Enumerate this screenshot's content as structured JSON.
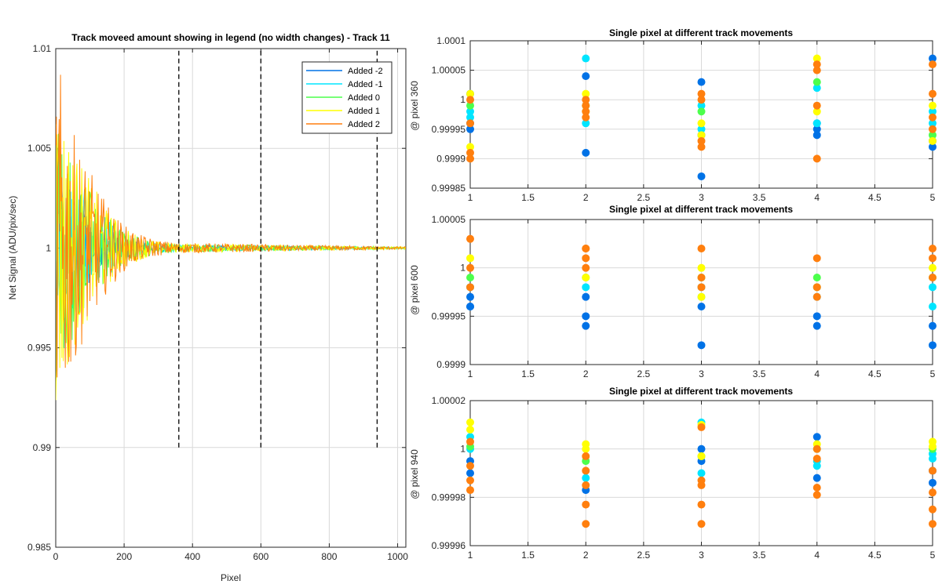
{
  "colors": {
    "added_m2": "#0072e6",
    "added_m1": "#00e5ff",
    "added_0": "#4cff4c",
    "added_1": "#ffff00",
    "added_2": "#ff7f0e",
    "dashed": "#000000",
    "grid": "#d9d9d9",
    "axes": "#262626"
  },
  "chart_data": [
    {
      "type": "line",
      "title": "Track moveed amount showing in legend (no width changes) - Track 11",
      "xlabel": "Pixel",
      "ylabel": "Net Signal (ADU/pix/sec)",
      "xlim": [
        0,
        1024
      ],
      "ylim": [
        0.985,
        1.01
      ],
      "xticks": [
        0,
        200,
        400,
        600,
        800,
        1000
      ],
      "yticks": [
        0.985,
        0.99,
        0.995,
        1,
        1.005,
        1.01
      ],
      "xtick_labels": [
        "0",
        "200",
        "400",
        "600",
        "800",
        "1000"
      ],
      "ytick_labels": [
        "0.985",
        "0.99",
        "0.995",
        "1",
        "1.005",
        "1.01"
      ],
      "grid": true,
      "legend_position": "top-right",
      "series": [
        {
          "name": "Added -2",
          "color_key": "added_m2"
        },
        {
          "name": "Added -1",
          "color_key": "added_m1"
        },
        {
          "name": "Added 0",
          "color_key": "added_0"
        },
        {
          "name": "Added 1",
          "color_key": "added_1"
        },
        {
          "name": "Added 2",
          "color_key": "added_2"
        }
      ],
      "noise_envelope": {
        "x": [
          0,
          20,
          50,
          100,
          150,
          200,
          250,
          300,
          360,
          1024
        ],
        "amplitude": [
          0.0075,
          0.0065,
          0.0045,
          0.003,
          0.0017,
          0.0009,
          0.0005,
          0.0003,
          0.0002,
          5e-05
        ]
      },
      "vertical_markers": [
        360,
        600,
        940
      ],
      "vertical_marker_range": [
        0.99,
        1.01
      ]
    },
    {
      "type": "scatter",
      "title": "Single pixel at different track movements",
      "ylabel": "@ pixel 360",
      "xlim": [
        1,
        5
      ],
      "ylim": [
        0.99985,
        1.0001
      ],
      "xticks": [
        1,
        1.5,
        2,
        2.5,
        3,
        3.5,
        4,
        4.5,
        5
      ],
      "xtick_labels": [
        "1",
        "1.5",
        "2",
        "2.5",
        "3",
        "3.5",
        "4",
        "4.5",
        "5"
      ],
      "yticks": [
        0.99985,
        0.9999,
        0.99995,
        1,
        1.00005,
        1.0001
      ],
      "ytick_labels": [
        "0.99985",
        "0.9999",
        "0.99995",
        "1",
        "1.00005",
        "1.0001"
      ],
      "grid": true,
      "series": [
        {
          "color_key": "added_m2",
          "points": [
            [
              1,
              0.99996
            ],
            [
              1,
              0.99995
            ],
            [
              1,
              1.00001
            ],
            [
              2,
              0.99991
            ],
            [
              2,
              1.00004
            ],
            [
              3,
              0.99987
            ],
            [
              3,
              1.00003
            ],
            [
              3,
              0.99994
            ],
            [
              4,
              0.99995
            ],
            [
              4,
              0.99994
            ],
            [
              4,
              0.99996
            ],
            [
              5,
              1.00007
            ],
            [
              5,
              0.99993
            ],
            [
              5,
              0.99992
            ]
          ]
        },
        {
          "color_key": "added_m1",
          "points": [
            [
              1,
              0.99998
            ],
            [
              1,
              0.99997
            ],
            [
              2,
              1.00007
            ],
            [
              2,
              0.99996
            ],
            [
              3,
              0.99999
            ],
            [
              3,
              0.99995
            ],
            [
              4,
              1.00002
            ],
            [
              4,
              0.99996
            ],
            [
              5,
              0.99996
            ],
            [
              5,
              0.99998
            ]
          ]
        },
        {
          "color_key": "added_0",
          "points": [
            [
              1,
              0.99999
            ],
            [
              2,
              0.99999
            ],
            [
              3,
              0.99998
            ],
            [
              4,
              1.00003
            ],
            [
              5,
              0.99994
            ]
          ]
        },
        {
          "color_key": "added_1",
          "points": [
            [
              1,
              0.99992
            ],
            [
              1,
              1.00001
            ],
            [
              2,
              1.00001
            ],
            [
              2,
              0.99998
            ],
            [
              3,
              0.99996
            ],
            [
              3,
              0.99994
            ],
            [
              4,
              1.00007
            ],
            [
              4,
              0.99998
            ],
            [
              5,
              0.99999
            ],
            [
              5,
              0.99993
            ]
          ]
        },
        {
          "color_key": "added_2",
          "points": [
            [
              1,
              0.9999
            ],
            [
              1,
              0.99991
            ],
            [
              1,
              0.99996
            ],
            [
              1,
              1.0
            ],
            [
              2,
              0.99998
            ],
            [
              2,
              0.99997
            ],
            [
              2,
              0.99999
            ],
            [
              2,
              1.0
            ],
            [
              3,
              0.99992
            ],
            [
              3,
              0.99993
            ],
            [
              3,
              1.0
            ],
            [
              3,
              1.00001
            ],
            [
              4,
              0.9999
            ],
            [
              4,
              1.00006
            ],
            [
              4,
              0.99999
            ],
            [
              4,
              1.00005
            ],
            [
              5,
              0.99997
            ],
            [
              5,
              0.99995
            ],
            [
              5,
              1.00001
            ],
            [
              5,
              1.00006
            ]
          ]
        }
      ]
    },
    {
      "type": "scatter",
      "title": "Single pixel at different track movements",
      "ylabel": "@ pixel 600",
      "xlim": [
        1,
        5
      ],
      "ylim": [
        0.9999,
        1.00005
      ],
      "xticks": [
        1,
        1.5,
        2,
        2.5,
        3,
        3.5,
        4,
        4.5,
        5
      ],
      "xtick_labels": [
        "1",
        "1.5",
        "2",
        "2.5",
        "3",
        "3.5",
        "4",
        "4.5",
        "5"
      ],
      "yticks": [
        0.9999,
        0.99995,
        1,
        1.00005
      ],
      "ytick_labels": [
        "0.9999",
        "0.99995",
        "1",
        "1.00005"
      ],
      "grid": true,
      "series": [
        {
          "color_key": "added_m2",
          "points": [
            [
              1,
              0.99996
            ],
            [
              1,
              0.99997
            ],
            [
              1,
              0.99996
            ],
            [
              2,
              0.99994
            ],
            [
              2,
              0.99995
            ],
            [
              2,
              0.99997
            ],
            [
              3,
              0.99992
            ],
            [
              3,
              0.99996
            ],
            [
              4,
              0.99994
            ],
            [
              4,
              0.99995
            ],
            [
              5,
              0.99992
            ],
            [
              5,
              0.99994
            ]
          ]
        },
        {
          "color_key": "added_m1",
          "points": [
            [
              1,
              0.99998
            ],
            [
              2,
              0.99998
            ],
            [
              3,
              0.99998
            ],
            [
              3,
              0.99997
            ],
            [
              4,
              0.99998
            ],
            [
              4,
              0.99997
            ],
            [
              5,
              0.99996
            ],
            [
              5,
              0.99998
            ]
          ]
        },
        {
          "color_key": "added_0",
          "points": [
            [
              1,
              0.99999
            ],
            [
              2,
              0.99999
            ],
            [
              3,
              0.99999
            ],
            [
              4,
              0.99999
            ],
            [
              5,
              0.99999
            ]
          ]
        },
        {
          "color_key": "added_1",
          "points": [
            [
              1,
              1.00001
            ],
            [
              2,
              0.99999
            ],
            [
              3,
              0.99997
            ],
            [
              3,
              1.0
            ],
            [
              4,
              0.99998
            ],
            [
              5,
              1.0
            ]
          ]
        },
        {
          "color_key": "added_2",
          "points": [
            [
              1,
              1.00003
            ],
            [
              1,
              1.0
            ],
            [
              1,
              0.99998
            ],
            [
              2,
              1.00002
            ],
            [
              2,
              1.00001
            ],
            [
              2,
              1.0
            ],
            [
              2,
              1.00002
            ],
            [
              3,
              1.00002
            ],
            [
              3,
              0.99999
            ],
            [
              3,
              0.99998
            ],
            [
              4,
              1.00001
            ],
            [
              4,
              0.99997
            ],
            [
              4,
              0.99998
            ],
            [
              5,
              1.00002
            ],
            [
              5,
              1.00001
            ],
            [
              5,
              0.99999
            ]
          ]
        }
      ]
    },
    {
      "type": "scatter",
      "title": "Single pixel at different track movements",
      "ylabel": "@ pixel 940",
      "xlim": [
        1,
        5
      ],
      "ylim": [
        0.99996,
        1.00002
      ],
      "xticks": [
        1,
        1.5,
        2,
        2.5,
        3,
        3.5,
        4,
        4.5,
        5
      ],
      "xtick_labels": [
        "1",
        "1.5",
        "2",
        "2.5",
        "3",
        "3.5",
        "4",
        "4.5",
        "5"
      ],
      "yticks": [
        0.99996,
        0.99998,
        1,
        1.00002
      ],
      "ytick_labels": [
        "0.99996",
        "0.99998",
        "1",
        "1.00002"
      ],
      "grid": true,
      "series": [
        {
          "color_key": "added_m2",
          "points": [
            [
              1,
              0.99999
            ],
            [
              1,
              0.999995
            ],
            [
              2,
              0.999983
            ],
            [
              3,
              1.0
            ],
            [
              3,
              0.999995
            ],
            [
              4,
              1.000005
            ],
            [
              4,
              0.999988
            ],
            [
              5,
              0.999991
            ],
            [
              5,
              0.999986
            ]
          ]
        },
        {
          "color_key": "added_m1",
          "points": [
            [
              1,
              1.000005
            ],
            [
              1,
              1.0
            ],
            [
              2,
              0.999988
            ],
            [
              3,
              1.000011
            ],
            [
              3,
              0.99999
            ],
            [
              4,
              0.999995
            ],
            [
              4,
              0.999993
            ],
            [
              5,
              0.999998
            ],
            [
              5,
              0.999996
            ]
          ]
        },
        {
          "color_key": "added_0",
          "points": [
            [
              1,
              1.000001
            ],
            [
              2,
              0.999995
            ],
            [
              3,
              0.999997
            ],
            [
              4,
              1.0
            ],
            [
              5,
              1.0
            ]
          ]
        },
        {
          "color_key": "added_1",
          "points": [
            [
              1,
              1.000011
            ],
            [
              1,
              1.000008
            ],
            [
              2,
              1.000002
            ],
            [
              2,
              1.0
            ],
            [
              3,
              1.00001
            ],
            [
              3,
              0.999997
            ],
            [
              4,
              1.000002
            ],
            [
              5,
              1.000003
            ],
            [
              5,
              1.000001
            ]
          ]
        },
        {
          "color_key": "added_2",
          "points": [
            [
              1,
              0.999983
            ],
            [
              1,
              0.999987
            ],
            [
              1,
              0.999993
            ],
            [
              1,
              1.000003
            ],
            [
              2,
              0.999969
            ],
            [
              2,
              0.999977
            ],
            [
              2,
              0.999985
            ],
            [
              2,
              0.999991
            ],
            [
              2,
              0.999997
            ],
            [
              3,
              0.999969
            ],
            [
              3,
              0.999977
            ],
            [
              3,
              0.999985
            ],
            [
              3,
              0.999987
            ],
            [
              3,
              1.000009
            ],
            [
              4,
              0.999981
            ],
            [
              4,
              0.999984
            ],
            [
              4,
              0.999996
            ],
            [
              4,
              1.0
            ],
            [
              5,
              0.999969
            ],
            [
              5,
              0.999975
            ],
            [
              5,
              0.999982
            ],
            [
              5,
              0.999991
            ]
          ]
        }
      ]
    }
  ]
}
